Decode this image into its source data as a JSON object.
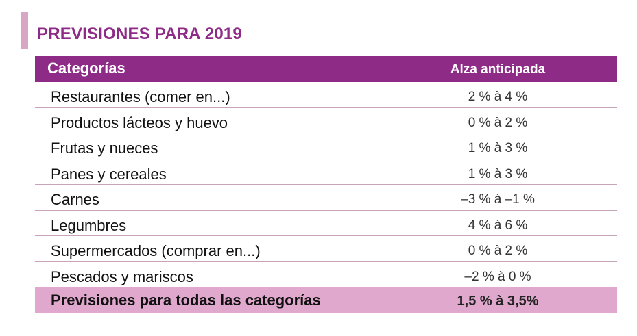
{
  "title": "PREVISIONES PARA 2019",
  "colors": {
    "accent": "#8e2b87",
    "accent_light": "#dfa8cc",
    "side_bar": "#d9a6c6"
  },
  "table": {
    "headers": {
      "category": "Categorías",
      "value": "Alza anticipada"
    },
    "rows": [
      {
        "category": "Restaurantes  (comer en...)",
        "value": "2 % à 4 %"
      },
      {
        "category": "Productos lácteos y huevo",
        "value": "0 % à 2 %"
      },
      {
        "category": "Frutas y nueces",
        "value": "1 % à 3 %"
      },
      {
        "category": "Panes y cereales",
        "value": "1 % à 3 %"
      },
      {
        "category": "Carnes",
        "value": "–3 % à –1 %"
      },
      {
        "category": "Legumbres",
        "value": "4 % à 6 %"
      },
      {
        "category": "Supermercados (comprar en...)",
        "value": "0 % à 2 %"
      },
      {
        "category": "Pescados y mariscos",
        "value": "–2 % à 0 %"
      }
    ],
    "total": {
      "category": "Previsiones para todas las categorías",
      "value": "1,5 % à 3,5%"
    }
  }
}
